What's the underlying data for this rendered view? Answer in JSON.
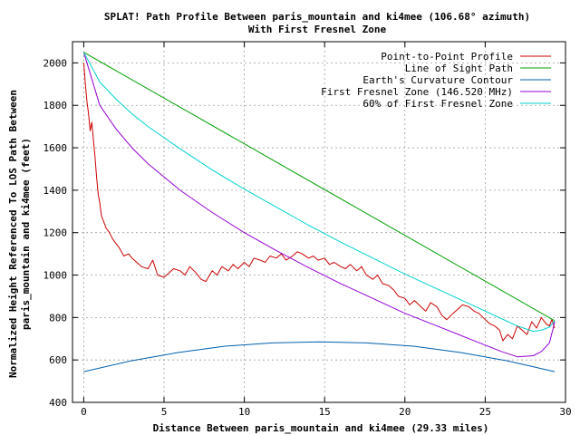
{
  "chart_data": {
    "type": "line",
    "title": "SPLAT! Path Profile Between paris_mountain and ki4mee (106.68° azimuth)",
    "subtitle": "With First Fresnel Zone",
    "xlabel": "Distance Between paris_mountain and ki4mee (29.33 miles)",
    "ylabel_line1": "Normalized Height Referenced To LOS Path Between",
    "ylabel_line2": "paris_mountain and ki4mee (feet)",
    "xlim": [
      -0.7,
      30
    ],
    "ylim": [
      400,
      2100
    ],
    "xticks": [
      0,
      5,
      10,
      15,
      20,
      25,
      30
    ],
    "yticks": [
      400,
      600,
      800,
      1000,
      1200,
      1400,
      1600,
      1800,
      2000
    ],
    "grid": true,
    "legend_position": "top-right",
    "series": [
      {
        "name": "Point-to-Point Profile",
        "color": "#cc0000",
        "x": [
          0,
          0.1,
          0.2,
          0.3,
          0.4,
          0.5,
          0.6,
          0.7,
          0.8,
          0.9,
          1.0,
          1.1,
          1.2,
          1.4,
          1.6,
          1.8,
          2.0,
          2.2,
          2.5,
          2.8,
          3.0,
          3.3,
          3.6,
          4.0,
          4.3,
          4.6,
          5.0,
          5.3,
          5.6,
          6.0,
          6.3,
          6.6,
          7.0,
          7.3,
          7.6,
          8.0,
          8.3,
          8.6,
          9.0,
          9.3,
          9.6,
          10.0,
          10.3,
          10.6,
          11.0,
          11.3,
          11.6,
          12.0,
          12.3,
          12.6,
          13.0,
          13.3,
          13.6,
          14.0,
          14.3,
          14.6,
          15.0,
          15.3,
          15.6,
          16.0,
          16.3,
          16.6,
          17.0,
          17.3,
          17.6,
          18.0,
          18.3,
          18.6,
          19.0,
          19.3,
          19.6,
          20.0,
          20.3,
          20.6,
          21.0,
          21.3,
          21.6,
          22.0,
          22.3,
          22.6,
          23.0,
          23.3,
          23.6,
          24.0,
          24.3,
          24.6,
          25.0,
          25.3,
          25.6,
          25.9,
          26.1,
          26.4,
          26.7,
          27.0,
          27.3,
          27.6,
          27.9,
          28.2,
          28.5,
          28.8,
          29.0,
          29.15,
          29.33
        ],
        "values": [
          2000,
          1900,
          1820,
          1760,
          1680,
          1720,
          1640,
          1560,
          1460,
          1380,
          1340,
          1280,
          1260,
          1220,
          1200,
          1170,
          1150,
          1130,
          1090,
          1100,
          1080,
          1060,
          1040,
          1030,
          1070,
          1000,
          990,
          1010,
          1030,
          1020,
          1000,
          1040,
          1010,
          980,
          970,
          1020,
          1000,
          1040,
          1020,
          1050,
          1030,
          1060,
          1040,
          1080,
          1070,
          1060,
          1090,
          1080,
          1100,
          1070,
          1090,
          1110,
          1100,
          1080,
          1090,
          1070,
          1080,
          1050,
          1060,
          1040,
          1030,
          1050,
          1020,
          1040,
          1000,
          980,
          1000,
          960,
          950,
          930,
          900,
          890,
          860,
          880,
          850,
          830,
          870,
          850,
          810,
          790,
          820,
          840,
          860,
          850,
          830,
          820,
          790,
          770,
          760,
          740,
          690,
          720,
          700,
          760,
          740,
          720,
          780,
          750,
          800,
          770,
          760,
          790,
          750
        ]
      },
      {
        "name": "Line of Sight Path",
        "color": "#00a000",
        "x": [
          0,
          29.33
        ],
        "values": [
          2050,
          785
        ]
      },
      {
        "name": "Earth's Curvature Contour",
        "color": "#0060ad",
        "x": [
          0,
          2.93,
          5.87,
          8.8,
          11.73,
          14.67,
          17.6,
          20.53,
          23.47,
          26.4,
          29.33
        ],
        "values": [
          545,
          595,
          635,
          665,
          680,
          685,
          680,
          665,
          635,
          595,
          545
        ]
      },
      {
        "name": "First Fresnel Zone (146.520 MHz)",
        "color": "#9400d3",
        "x": [
          0,
          1,
          2,
          3,
          4,
          6,
          8,
          10,
          12,
          14,
          16,
          18,
          20,
          22,
          24,
          25,
          26,
          27,
          28,
          28.5,
          29,
          29.33
        ],
        "values": [
          2050,
          1800,
          1690,
          1600,
          1525,
          1400,
          1295,
          1200,
          1115,
          1035,
          960,
          890,
          820,
          760,
          700,
          670,
          640,
          615,
          620,
          640,
          680,
          780
        ]
      },
      {
        "name": "60% of First Fresnel Zone",
        "color": "#00d0d0",
        "x": [
          0,
          1,
          2,
          3,
          4,
          6,
          8,
          10,
          12,
          14,
          16,
          18,
          20,
          22,
          24,
          26,
          27,
          28,
          28.5,
          29,
          29.33
        ],
        "values": [
          2050,
          1910,
          1830,
          1760,
          1700,
          1595,
          1495,
          1405,
          1320,
          1235,
          1155,
          1080,
          1005,
          935,
          865,
          795,
          760,
          735,
          740,
          755,
          785
        ]
      }
    ]
  }
}
